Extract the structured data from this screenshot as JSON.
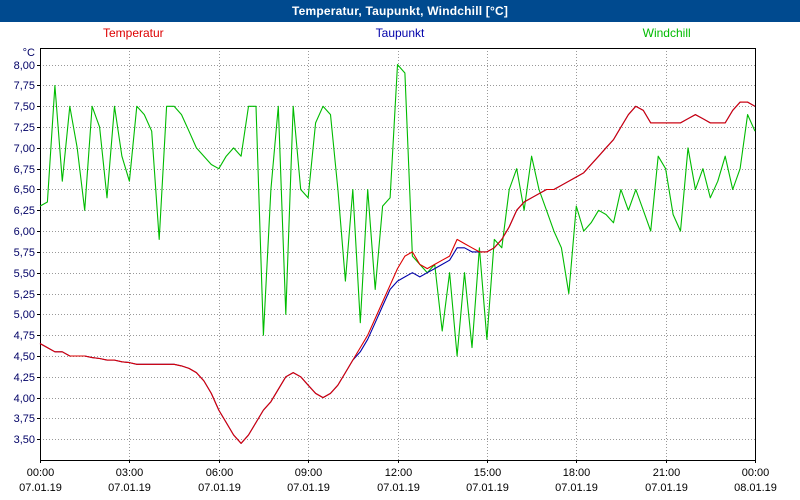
{
  "title_bar": {
    "text": "Temperatur, Taupunkt, Windchill [°C]",
    "bg_color": "#004a8f",
    "text_color": "#ffffff"
  },
  "legend": {
    "items": [
      {
        "label": "Temperatur",
        "color": "#dd0000"
      },
      {
        "label": "Taupunkt",
        "color": "#0000aa"
      },
      {
        "label": "Windchill",
        "color": "#00bb00"
      }
    ]
  },
  "axes": {
    "y_unit": "°C",
    "grid_color": "#999999",
    "frame_color": "#000000",
    "y_ticks": [
      {
        "value": 8.0,
        "label": "8,00"
      },
      {
        "value": 7.75,
        "label": "7,75"
      },
      {
        "value": 7.5,
        "label": "7,50"
      },
      {
        "value": 7.25,
        "label": "7,25"
      },
      {
        "value": 7.0,
        "label": "7,00"
      },
      {
        "value": 6.75,
        "label": "6,75"
      },
      {
        "value": 6.5,
        "label": "6,50"
      },
      {
        "value": 6.25,
        "label": "6,25"
      },
      {
        "value": 6.0,
        "label": "6,00"
      },
      {
        "value": 5.75,
        "label": "5,75"
      },
      {
        "value": 5.5,
        "label": "5,50"
      },
      {
        "value": 5.25,
        "label": "5,25"
      },
      {
        "value": 5.0,
        "label": "5,00"
      },
      {
        "value": 4.75,
        "label": "4,75"
      },
      {
        "value": 4.5,
        "label": "4,50"
      },
      {
        "value": 4.25,
        "label": "4,25"
      },
      {
        "value": 4.0,
        "label": "4,00"
      },
      {
        "value": 3.75,
        "label": "3,75"
      },
      {
        "value": 3.5,
        "label": "3,50"
      }
    ],
    "x_ticks": [
      {
        "hour": 0,
        "time": "00:00",
        "date": "07.01.19"
      },
      {
        "hour": 3,
        "time": "03:00",
        "date": "07.01.19"
      },
      {
        "hour": 6,
        "time": "06:00",
        "date": "07.01.19"
      },
      {
        "hour": 9,
        "time": "09:00",
        "date": "07.01.19"
      },
      {
        "hour": 12,
        "time": "12:00",
        "date": "07.01.19"
      },
      {
        "hour": 15,
        "time": "15:00",
        "date": "07.01.19"
      },
      {
        "hour": 18,
        "time": "18:00",
        "date": "07.01.19"
      },
      {
        "hour": 21,
        "time": "21:00",
        "date": "07.01.19"
      },
      {
        "hour": 24,
        "time": "00:00",
        "date": "08.01.19"
      }
    ]
  },
  "chart_data": {
    "type": "line",
    "title": "Temperatur, Taupunkt, Windchill [°C]",
    "xlabel": "",
    "ylabel": "°C",
    "legend_position": "top",
    "grid": true,
    "x_unit": "hours since 07.01.19 00:00",
    "xlim": [
      0,
      24
    ],
    "ylim": [
      3.25,
      8.2
    ],
    "x": [
      0,
      0.25,
      0.5,
      0.75,
      1,
      1.25,
      1.5,
      1.75,
      2,
      2.25,
      2.5,
      2.75,
      3,
      3.25,
      3.5,
      3.75,
      4,
      4.25,
      4.5,
      4.75,
      5,
      5.25,
      5.5,
      5.75,
      6,
      6.25,
      6.5,
      6.75,
      7,
      7.25,
      7.5,
      7.75,
      8,
      8.25,
      8.5,
      8.75,
      9,
      9.25,
      9.5,
      9.75,
      10,
      10.25,
      10.5,
      10.75,
      11,
      11.25,
      11.5,
      11.75,
      12,
      12.25,
      12.5,
      12.75,
      13,
      13.25,
      13.5,
      13.75,
      14,
      14.25,
      14.5,
      14.75,
      15,
      15.25,
      15.5,
      15.75,
      16,
      16.25,
      16.5,
      16.75,
      17,
      17.25,
      17.5,
      17.75,
      18,
      18.25,
      18.5,
      18.75,
      19,
      19.25,
      19.5,
      19.75,
      20,
      20.25,
      20.5,
      20.75,
      21,
      21.25,
      21.5,
      21.75,
      22,
      22.25,
      22.5,
      22.75,
      23,
      23.25,
      23.5,
      23.75,
      24
    ],
    "series": [
      {
        "name": "Temperatur",
        "color": "#dd0000",
        "values": [
          4.65,
          4.6,
          4.55,
          4.55,
          4.5,
          4.5,
          4.5,
          4.48,
          4.47,
          4.45,
          4.45,
          4.43,
          4.42,
          4.4,
          4.4,
          4.4,
          4.4,
          4.4,
          4.4,
          4.38,
          4.35,
          4.3,
          4.2,
          4.05,
          3.85,
          3.7,
          3.55,
          3.45,
          3.55,
          3.7,
          3.85,
          3.95,
          4.1,
          4.25,
          4.3,
          4.25,
          4.15,
          4.05,
          4.0,
          4.05,
          4.15,
          4.3,
          4.45,
          4.6,
          4.75,
          4.95,
          5.15,
          5.35,
          5.55,
          5.7,
          5.75,
          5.6,
          5.55,
          5.6,
          5.65,
          5.7,
          5.9,
          5.85,
          5.8,
          5.75,
          5.75,
          5.8,
          5.9,
          6.05,
          6.25,
          6.35,
          6.4,
          6.45,
          6.5,
          6.5,
          6.55,
          6.6,
          6.65,
          6.7,
          6.8,
          6.9,
          7.0,
          7.1,
          7.25,
          7.4,
          7.5,
          7.45,
          7.3,
          7.3,
          7.3,
          7.3,
          7.3,
          7.35,
          7.4,
          7.35,
          7.3,
          7.3,
          7.3,
          7.45,
          7.55,
          7.55,
          7.5
        ]
      },
      {
        "name": "Taupunkt",
        "color": "#0000aa",
        "values": [
          4.65,
          4.6,
          4.55,
          4.55,
          4.5,
          4.5,
          4.5,
          4.48,
          4.47,
          4.45,
          4.45,
          4.43,
          4.42,
          4.4,
          4.4,
          4.4,
          4.4,
          4.4,
          4.4,
          4.38,
          4.35,
          4.3,
          4.2,
          4.05,
          3.85,
          3.7,
          3.55,
          3.45,
          3.55,
          3.7,
          3.85,
          3.95,
          4.1,
          4.25,
          4.3,
          4.25,
          4.15,
          4.05,
          4.0,
          4.05,
          4.15,
          4.3,
          4.45,
          4.55,
          4.7,
          4.9,
          5.1,
          5.3,
          5.4,
          5.45,
          5.5,
          5.45,
          5.5,
          5.55,
          5.6,
          5.65,
          5.8,
          5.8,
          5.75,
          5.75,
          5.75,
          5.8,
          5.9,
          6.05,
          6.25,
          6.35,
          6.4,
          6.45,
          6.5,
          6.5,
          6.55,
          6.6,
          6.65,
          6.7,
          6.8,
          6.9,
          7.0,
          7.1,
          7.25,
          7.4,
          7.5,
          7.45,
          7.3,
          7.3,
          7.3,
          7.3,
          7.3,
          7.35,
          7.4,
          7.35,
          7.3,
          7.3,
          7.3,
          7.45,
          7.55,
          7.55,
          7.5
        ]
      },
      {
        "name": "Windchill",
        "color": "#00bb00",
        "values": [
          6.3,
          6.35,
          7.75,
          6.6,
          7.5,
          7.0,
          6.25,
          7.5,
          7.25,
          6.4,
          7.5,
          6.9,
          6.6,
          7.5,
          7.4,
          7.2,
          5.9,
          7.5,
          7.5,
          7.4,
          7.2,
          7.0,
          6.9,
          6.8,
          6.75,
          6.9,
          7.0,
          6.9,
          7.5,
          7.5,
          4.75,
          6.5,
          7.5,
          5.0,
          7.5,
          6.5,
          6.4,
          7.3,
          7.5,
          7.4,
          6.5,
          5.4,
          6.5,
          4.9,
          6.5,
          5.3,
          6.3,
          6.4,
          8.0,
          7.9,
          5.7,
          5.6,
          5.5,
          5.6,
          4.8,
          5.5,
          4.5,
          5.5,
          4.6,
          5.8,
          4.7,
          5.9,
          5.8,
          6.5,
          6.75,
          6.25,
          6.9,
          6.5,
          6.25,
          6.0,
          5.8,
          5.25,
          6.3,
          6.0,
          6.1,
          6.25,
          6.2,
          6.1,
          6.5,
          6.25,
          6.5,
          6.25,
          6.0,
          6.9,
          6.75,
          6.2,
          6.0,
          7.0,
          6.5,
          6.75,
          6.4,
          6.6,
          6.9,
          6.5,
          6.75,
          7.4,
          7.2
        ]
      }
    ]
  }
}
